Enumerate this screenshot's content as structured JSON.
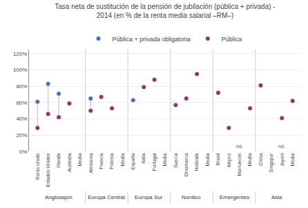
{
  "chart_data": {
    "type": "dot",
    "title": "Tasa neta de sustitución de la pensión de jubilación (pública + privada) -\n2014 (en % de la renta media salarial –RM–)",
    "categories": [
      "Reino Unido",
      "Estados Unidos",
      "Irlanda",
      "Australia",
      "Media",
      "Alemania",
      "Francia",
      "Polonia",
      "Media",
      "España",
      "Italia",
      "Portugal",
      "Media",
      "Suecia",
      "Dinamarca",
      "Holanda",
      "Media",
      "Brasil",
      "Mejico",
      "Marruecos",
      "Media",
      "China",
      "Singapur",
      "Japón",
      "Media"
    ],
    "groups": [
      {
        "label": "Anglosajón",
        "count": 5
      },
      {
        "label": "Europa Central",
        "count": 4
      },
      {
        "label": "Europa Sur",
        "count": 4
      },
      {
        "label": "Nórdico",
        "count": 4
      },
      {
        "label": "Emergentes",
        "count": 4
      },
      {
        "label": "Asia",
        "count": 4
      }
    ],
    "series": [
      {
        "name": "Pública + privada obligatoria",
        "color": "#4472c4",
        "values": [
          61,
          83,
          71,
          null,
          null,
          65,
          null,
          null,
          null,
          63,
          null,
          null,
          null,
          null,
          null,
          null,
          null,
          null,
          null,
          null,
          null,
          null,
          null,
          null,
          null
        ]
      },
      {
        "name": "Pública",
        "color": "#9e3070",
        "values": [
          29,
          46,
          42,
          59,
          null,
          50,
          67,
          53,
          null,
          null,
          79,
          88,
          null,
          57,
          65,
          95,
          null,
          72,
          29,
          null,
          53,
          81,
          null,
          41,
          62
        ]
      }
    ],
    "notes": [
      null,
      null,
      null,
      null,
      null,
      null,
      null,
      null,
      null,
      null,
      null,
      null,
      null,
      null,
      null,
      null,
      null,
      null,
      null,
      "nd.",
      null,
      null,
      null,
      "nd.",
      null
    ],
    "ylim": [
      0,
      125
    ],
    "yticks": [
      {
        "value": 0,
        "label": "0%"
      },
      {
        "value": 20,
        "label": "20%"
      },
      {
        "value": 40,
        "label": "40%"
      },
      {
        "value": 60,
        "label": "60%"
      },
      {
        "value": 80,
        "label": "80%"
      },
      {
        "value": 100,
        "label": "100%"
      },
      {
        "value": 120,
        "label": "120%"
      }
    ],
    "grid": true,
    "legend": "top",
    "marker": "circle"
  }
}
